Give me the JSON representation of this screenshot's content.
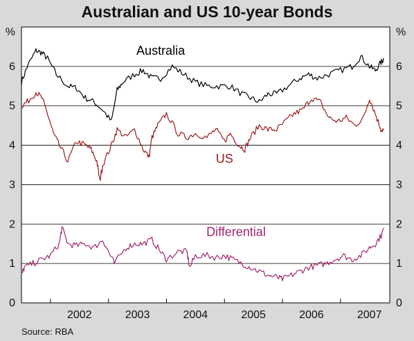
{
  "title": "Australian and US 10-year Bonds",
  "source": "Source: RBA",
  "chart_data": {
    "type": "line",
    "title": "Australian and US 10-year Bonds",
    "yunit": "%",
    "ylim": [
      0,
      7
    ],
    "yticks": [
      0,
      1,
      2,
      3,
      4,
      5,
      6
    ],
    "xlim": [
      2001.5,
      2007.85
    ],
    "xlabels": [
      "2002",
      "2003",
      "2004",
      "2005",
      "2006",
      "2007"
    ],
    "grid": true,
    "series": [
      {
        "name": "Australia",
        "color": "#000000",
        "x": [
          2001.5,
          2001.6,
          2001.75,
          2001.85,
          2001.95,
          2002.1,
          2002.3,
          2002.45,
          2002.6,
          2002.75,
          2002.9,
          2003.05,
          2003.15,
          2003.25,
          2003.45,
          2003.6,
          2003.75,
          2003.9,
          2004.1,
          2004.3,
          2004.5,
          2004.7,
          2004.9,
          2005.1,
          2005.3,
          2005.45,
          2005.6,
          2005.75,
          2005.9,
          2006.1,
          2006.3,
          2006.45,
          2006.6,
          2006.8,
          2007.0,
          2007.2,
          2007.35,
          2007.5,
          2007.6,
          2007.7,
          2007.75
        ],
        "values": [
          5.6,
          6.0,
          6.4,
          6.35,
          6.2,
          5.8,
          5.5,
          5.45,
          5.2,
          5.1,
          4.9,
          4.6,
          5.4,
          5.6,
          5.8,
          5.9,
          5.7,
          5.7,
          6.0,
          5.8,
          5.6,
          5.5,
          5.5,
          5.5,
          5.3,
          5.2,
          5.1,
          5.3,
          5.3,
          5.5,
          5.7,
          5.8,
          5.7,
          5.8,
          5.9,
          6.0,
          6.25,
          6.0,
          5.9,
          6.1,
          6.2
        ]
      },
      {
        "name": "US",
        "color": "#9b1b1b",
        "x": [
          2001.5,
          2001.6,
          2001.75,
          2001.85,
          2001.95,
          2002.05,
          2002.15,
          2002.3,
          2002.45,
          2002.6,
          2002.7,
          2002.8,
          2002.85,
          2002.9,
          2003.05,
          2003.15,
          2003.3,
          2003.45,
          2003.6,
          2003.7,
          2003.75,
          2003.85,
          2004.0,
          2004.2,
          2004.35,
          2004.5,
          2004.7,
          2004.85,
          2005.0,
          2005.1,
          2005.25,
          2005.35,
          2005.45,
          2005.6,
          2005.75,
          2005.9,
          2006.05,
          2006.2,
          2006.35,
          2006.5,
          2006.65,
          2006.8,
          2006.95,
          2007.1,
          2007.25,
          2007.4,
          2007.5,
          2007.6,
          2007.7,
          2007.75
        ],
        "values": [
          5.0,
          5.1,
          5.35,
          5.2,
          4.8,
          4.3,
          4.0,
          3.6,
          4.1,
          4.0,
          3.9,
          3.6,
          3.1,
          3.5,
          4.0,
          4.4,
          4.2,
          4.4,
          3.9,
          3.7,
          4.2,
          4.5,
          4.8,
          4.3,
          4.2,
          4.3,
          4.2,
          4.4,
          4.1,
          4.3,
          4.0,
          3.9,
          4.2,
          4.5,
          4.4,
          4.4,
          4.6,
          4.8,
          4.9,
          5.2,
          5.1,
          4.7,
          4.6,
          4.7,
          4.5,
          4.7,
          5.2,
          4.8,
          4.4,
          4.4
        ]
      },
      {
        "name": "Differential",
        "color": "#a0266e",
        "x": [
          2001.5,
          2001.55,
          2001.7,
          2001.85,
          2002.0,
          2002.15,
          2002.2,
          2002.3,
          2002.45,
          2002.6,
          2002.75,
          2002.9,
          2003.0,
          2003.1,
          2003.3,
          2003.45,
          2003.6,
          2003.75,
          2003.9,
          2004.0,
          2004.2,
          2004.35,
          2004.4,
          2004.5,
          2004.7,
          2004.85,
          2005.0,
          2005.15,
          2005.3,
          2005.45,
          2005.6,
          2005.75,
          2005.9,
          2006.0,
          2006.15,
          2006.3,
          2006.45,
          2006.6,
          2006.75,
          2006.9,
          2007.05,
          2007.2,
          2007.35,
          2007.5,
          2007.6,
          2007.7,
          2007.75
        ],
        "values": [
          0.7,
          0.9,
          1.0,
          1.1,
          1.2,
          1.5,
          1.9,
          1.5,
          1.45,
          1.5,
          1.4,
          1.6,
          1.3,
          1.0,
          1.4,
          1.5,
          1.5,
          1.6,
          1.3,
          1.1,
          1.3,
          1.3,
          0.9,
          1.2,
          1.2,
          1.15,
          1.2,
          1.1,
          1.0,
          0.9,
          0.8,
          0.7,
          0.65,
          0.6,
          0.7,
          0.8,
          0.9,
          0.95,
          1.0,
          1.1,
          1.2,
          1.1,
          1.2,
          1.4,
          1.5,
          1.7,
          1.9
        ]
      }
    ],
    "annotations": [
      {
        "text": "Australia",
        "series": "Australia"
      },
      {
        "text": "US",
        "series": "US"
      },
      {
        "text": "Differential",
        "series": "Differential"
      }
    ]
  }
}
